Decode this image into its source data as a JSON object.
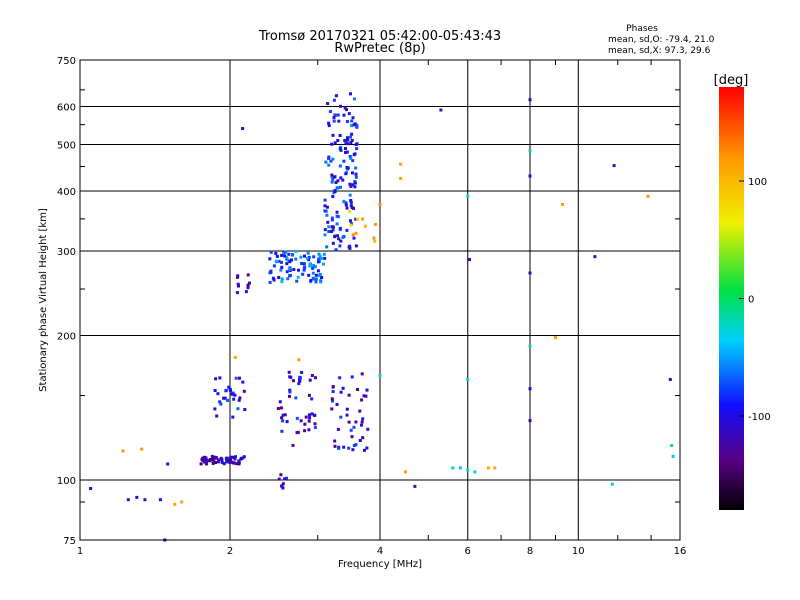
{
  "chart_data": {
    "type": "scatter",
    "title": "Tromsø 20170321 05:42:00-05:43:43",
    "subtitle": "RwPretec (8p)",
    "xlabel": "Frequency [MHz]",
    "ylabel": "Stationary phase Virtual Height [km]",
    "x_scale": "log",
    "y_scale": "log",
    "xlim": [
      1,
      16
    ],
    "ylim": [
      75,
      750
    ],
    "xticks": [
      1,
      2,
      4,
      6,
      8,
      10,
      16
    ],
    "yticks": [
      75,
      100,
      200,
      300,
      400,
      500,
      600,
      750
    ],
    "grid": true,
    "phases_title": "Phases",
    "phase_stats": [
      "mean, sd,O: -79.4, 21.0",
      "mean, sd,X:  97.3, 29.6"
    ],
    "colorbar": {
      "label": "[deg]",
      "range": [
        -180,
        180
      ],
      "ticks": [
        100,
        0,
        -100
      ],
      "colormap": "rainbow: black-purple-blue-cyan-green-yellow-orange-red"
    },
    "clusters": [
      {
        "f_range": [
          3.1,
          3.6
        ],
        "h_range": [
          300,
          640
        ],
        "phase": -90,
        "count": 150
      },
      {
        "f_range": [
          2.4,
          3.1
        ],
        "h_range": [
          258,
          300
        ],
        "phase": -75,
        "count": 90
      },
      {
        "f_range": [
          3.45,
          3.95
        ],
        "h_range": [
          310,
          370
        ],
        "phase": 115,
        "count": 10
      },
      {
        "f_range": [
          1.75,
          2.15
        ],
        "h_range": [
          108,
          112
        ],
        "phase": -115,
        "count": 55
      },
      {
        "f_range": [
          1.85,
          2.15
        ],
        "h_range": [
          135,
          165
        ],
        "phase": -100,
        "count": 30
      },
      {
        "f_range": [
          2.5,
          3.0
        ],
        "h_range": [
          115,
          170
        ],
        "phase": -105,
        "count": 45
      },
      {
        "f_range": [
          3.2,
          3.8
        ],
        "h_range": [
          115,
          170
        ],
        "phase": -105,
        "count": 45
      },
      {
        "f_range": [
          2.05,
          2.2
        ],
        "h_range": [
          245,
          268
        ],
        "phase": -120,
        "count": 10
      },
      {
        "f_range": [
          2.5,
          2.6
        ],
        "h_range": [
          95,
          103
        ],
        "phase": -110,
        "count": 8
      }
    ],
    "scatter_points": [
      {
        "f": 1.05,
        "h": 96,
        "phase": -110
      },
      {
        "f": 1.25,
        "h": 91,
        "phase": -110
      },
      {
        "f": 1.3,
        "h": 92,
        "phase": -110
      },
      {
        "f": 1.35,
        "h": 91,
        "phase": -120
      },
      {
        "f": 1.45,
        "h": 91,
        "phase": -100
      },
      {
        "f": 1.5,
        "h": 108,
        "phase": -100
      },
      {
        "f": 1.55,
        "h": 89,
        "phase": 110
      },
      {
        "f": 1.6,
        "h": 90,
        "phase": 110
      },
      {
        "f": 1.22,
        "h": 115,
        "phase": 120
      },
      {
        "f": 1.33,
        "h": 116,
        "phase": 120
      },
      {
        "f": 1.48,
        "h": 75,
        "phase": -110
      },
      {
        "f": 2.12,
        "h": 540,
        "phase": -110
      },
      {
        "f": 4.4,
        "h": 455,
        "phase": 115
      },
      {
        "f": 4.4,
        "h": 425,
        "phase": 115
      },
      {
        "f": 5.3,
        "h": 590,
        "phase": -110
      },
      {
        "f": 6.0,
        "h": 390,
        "phase": -20
      },
      {
        "f": 6.05,
        "h": 288,
        "phase": -120
      },
      {
        "f": 8.0,
        "h": 620,
        "phase": -120
      },
      {
        "f": 8.0,
        "h": 485,
        "phase": -20
      },
      {
        "f": 8.0,
        "h": 430,
        "phase": -110
      },
      {
        "f": 8.0,
        "h": 270,
        "phase": -120
      },
      {
        "f": 8.0,
        "h": 190,
        "phase": -20
      },
      {
        "f": 8.0,
        "h": 155,
        "phase": -110
      },
      {
        "f": 8.0,
        "h": 133,
        "phase": -120
      },
      {
        "f": 9.0,
        "h": 198,
        "phase": 115
      },
      {
        "f": 9.3,
        "h": 375,
        "phase": 115
      },
      {
        "f": 10.8,
        "h": 292,
        "phase": -110
      },
      {
        "f": 11.7,
        "h": 98,
        "phase": -20
      },
      {
        "f": 11.8,
        "h": 452,
        "phase": -110
      },
      {
        "f": 13.8,
        "h": 390,
        "phase": 120
      },
      {
        "f": 15.3,
        "h": 162,
        "phase": -110
      },
      {
        "f": 15.4,
        "h": 118,
        "phase": -20
      },
      {
        "f": 15.5,
        "h": 112,
        "phase": -30
      },
      {
        "f": 4.5,
        "h": 104,
        "phase": 115
      },
      {
        "f": 4.7,
        "h": 97,
        "phase": -120
      },
      {
        "f": 5.6,
        "h": 106,
        "phase": -20
      },
      {
        "f": 5.8,
        "h": 106,
        "phase": -40
      },
      {
        "f": 6.0,
        "h": 105,
        "phase": -20
      },
      {
        "f": 6.2,
        "h": 104,
        "phase": -30
      },
      {
        "f": 6.6,
        "h": 106,
        "phase": 110
      },
      {
        "f": 6.8,
        "h": 106,
        "phase": 110
      },
      {
        "f": 4.0,
        "h": 165,
        "phase": -20
      },
      {
        "f": 4.0,
        "h": 375,
        "phase": 120
      },
      {
        "f": 6.0,
        "h": 162,
        "phase": -20
      },
      {
        "f": 2.75,
        "h": 178,
        "phase": 120
      },
      {
        "f": 2.05,
        "h": 180,
        "phase": 110
      }
    ]
  }
}
